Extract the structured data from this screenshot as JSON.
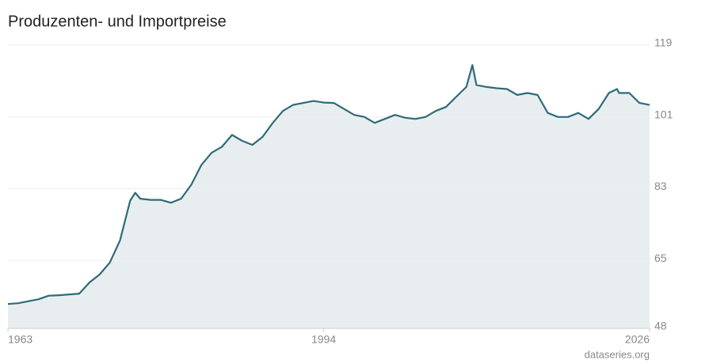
{
  "chart_data": {
    "type": "line",
    "title": "Produzenten- und Importpreise",
    "source": "dataseries.org",
    "x": [
      1963,
      1964,
      1965,
      1966,
      1967,
      1968,
      1969,
      1970,
      1971,
      1972,
      1973,
      1974,
      1975,
      1975.5,
      1976,
      1977,
      1978,
      1979,
      1980,
      1981,
      1982,
      1983,
      1984,
      1985,
      1986,
      1987,
      1988,
      1989,
      1990,
      1991,
      1992,
      1993,
      1994,
      1995,
      1996,
      1997,
      1998,
      1999,
      2000,
      2001,
      2002,
      2003,
      2004,
      2005,
      2006,
      2007,
      2008,
      2008.6,
      2009,
      2010,
      2011,
      2012,
      2013,
      2014,
      2015,
      2016,
      2017,
      2018,
      2019,
      2020,
      2021,
      2022,
      2022.8,
      2023,
      2024,
      2025,
      2026
    ],
    "series": [
      {
        "name": "Produzenten- und Importpreise",
        "color": "#2e6b78",
        "values": [
          54.1,
          54.3,
          54.8,
          55.3,
          56.2,
          56.3,
          56.5,
          56.7,
          59.5,
          61.5,
          64.5,
          70,
          80,
          82,
          80.5,
          80.2,
          80.2,
          79.5,
          80.5,
          84,
          89,
          92,
          93.5,
          96.5,
          95,
          94,
          96,
          99.5,
          102.5,
          104,
          104.5,
          105,
          104.6,
          104.5,
          103,
          101.5,
          101,
          99.5,
          100.5,
          101.5,
          100.8,
          100.5,
          101,
          102.5,
          103.5,
          106,
          108.5,
          114,
          109,
          108.5,
          108.2,
          108,
          106.5,
          107,
          106.5,
          102,
          101,
          101,
          102,
          100.5,
          103,
          107,
          108,
          107,
          107,
          104.5,
          104
        ]
      }
    ],
    "xlim": [
      1963,
      2026
    ],
    "xticks": [
      1963,
      1994,
      2026
    ],
    "ylim": [
      48,
      119
    ],
    "yticks": [
      48,
      65,
      83,
      101,
      119
    ],
    "grid": true,
    "area_fill": "#e8eef0"
  }
}
